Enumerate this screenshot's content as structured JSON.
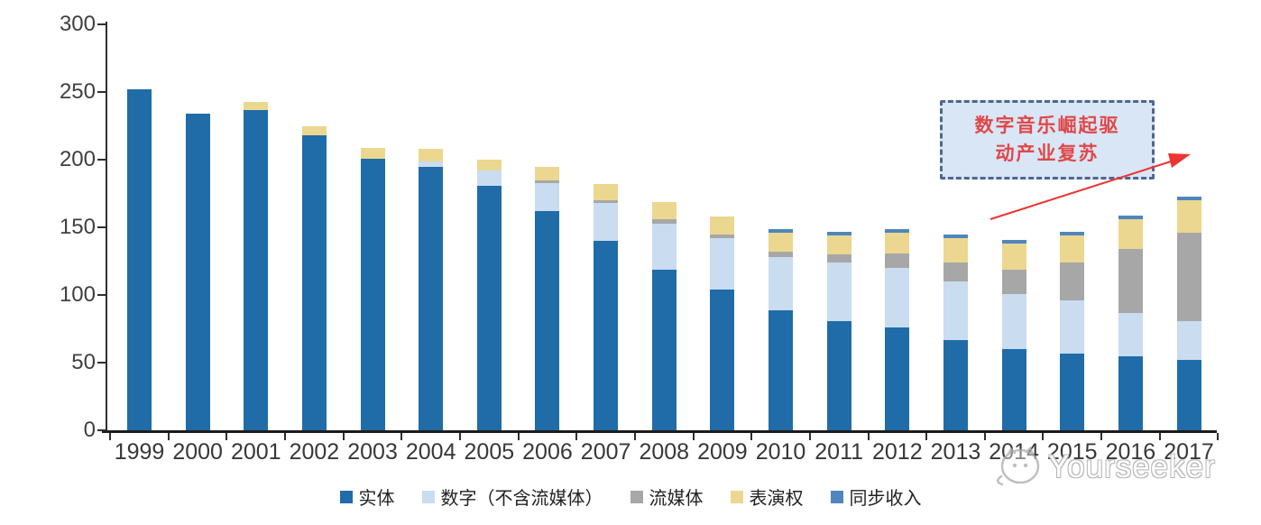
{
  "chart_data": {
    "type": "bar",
    "stacked": true,
    "title": "",
    "xlabel": "",
    "ylabel": "",
    "ylim": [
      0,
      300
    ],
    "yticks": [
      0,
      50,
      100,
      150,
      200,
      250,
      300
    ],
    "grid": false,
    "legend_position": "bottom",
    "categories": [
      "1999",
      "2000",
      "2001",
      "2002",
      "2003",
      "2004",
      "2005",
      "2006",
      "2007",
      "2008",
      "2009",
      "2010",
      "2011",
      "2012",
      "2013",
      "2014",
      "2015",
      "2016",
      "2017"
    ],
    "series": [
      {
        "key": "physical",
        "name": "实体",
        "color": "#1F6CA8",
        "values": [
          252,
          234,
          237,
          218,
          201,
          195,
          181,
          162,
          140,
          119,
          104,
          89,
          81,
          76,
          67,
          60,
          57,
          55,
          52
        ]
      },
      {
        "key": "digital",
        "name": "数字（不含流媒体）",
        "color": "#C9DCF0",
        "values": [
          0,
          0,
          0,
          0,
          0,
          4,
          11,
          21,
          28,
          34,
          38,
          39,
          43,
          44,
          43,
          41,
          39,
          32,
          29
        ]
      },
      {
        "key": "streaming",
        "name": "流媒体",
        "color": "#A7A7A7",
        "values": [
          0,
          0,
          0,
          0,
          0,
          0,
          0,
          2,
          2,
          3,
          3,
          4,
          6,
          11,
          14,
          18,
          28,
          47,
          65
        ]
      },
      {
        "key": "performance",
        "name": "表演权",
        "color": "#EBD78F",
        "values": [
          0,
          0,
          6,
          7,
          8,
          9,
          8,
          10,
          12,
          13,
          13,
          14,
          14,
          15,
          18,
          19,
          20,
          22,
          24
        ]
      },
      {
        "key": "sync",
        "name": "同步收入",
        "color": "#4E86BD",
        "values": [
          0,
          0,
          0,
          0,
          0,
          0,
          0,
          0,
          0,
          0,
          0,
          3,
          3,
          3,
          3,
          3,
          3,
          3,
          3
        ]
      }
    ]
  },
  "axis": {
    "color": "#3F3F3F"
  },
  "annotation": {
    "line1": "数字音乐崛起驱",
    "line2": "动产业复苏",
    "text_color": "#E04848",
    "border_color": "#51658F",
    "fill_color": "#D8E6F6",
    "arrow_color": "#EE3333"
  },
  "watermark": {
    "text": "Yourseeker",
    "logo": "cat-chat-logo-icon"
  }
}
